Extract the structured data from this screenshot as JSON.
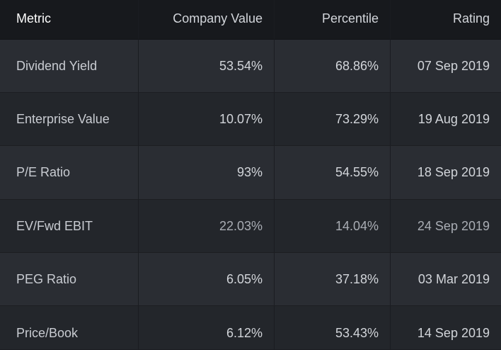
{
  "table": {
    "headers": [
      "Metric",
      "Company Value",
      "Percentile",
      "Rating"
    ],
    "rows": [
      {
        "metric": "Dividend Yield",
        "company_value": "53.54%",
        "percentile": "68.86%",
        "rating": "07 Sep 2019"
      },
      {
        "metric": "Enterprise Value",
        "company_value": "10.07%",
        "percentile": "73.29%",
        "rating": "19 Aug 2019"
      },
      {
        "metric": "P/E Ratio",
        "company_value": "93%",
        "percentile": "54.55%",
        "rating": "18 Sep 2019"
      },
      {
        "metric": "EV/Fwd EBIT",
        "company_value": "22.03%",
        "percentile": "14.04%",
        "rating": "24 Sep 2019"
      },
      {
        "metric": "PEG Ratio",
        "company_value": "6.05%",
        "percentile": "37.18%",
        "rating": "03 Mar 2019"
      },
      {
        "metric": "Price/Book",
        "company_value": "6.12%",
        "percentile": "53.43%",
        "rating": "14 Sep 2019"
      }
    ]
  },
  "colors": {
    "header_bg": "#17191d",
    "row_odd_bg": "#2a2d33",
    "row_even_bg": "#23262b",
    "text": "#d6d9de",
    "header_text": "#ffffff"
  }
}
